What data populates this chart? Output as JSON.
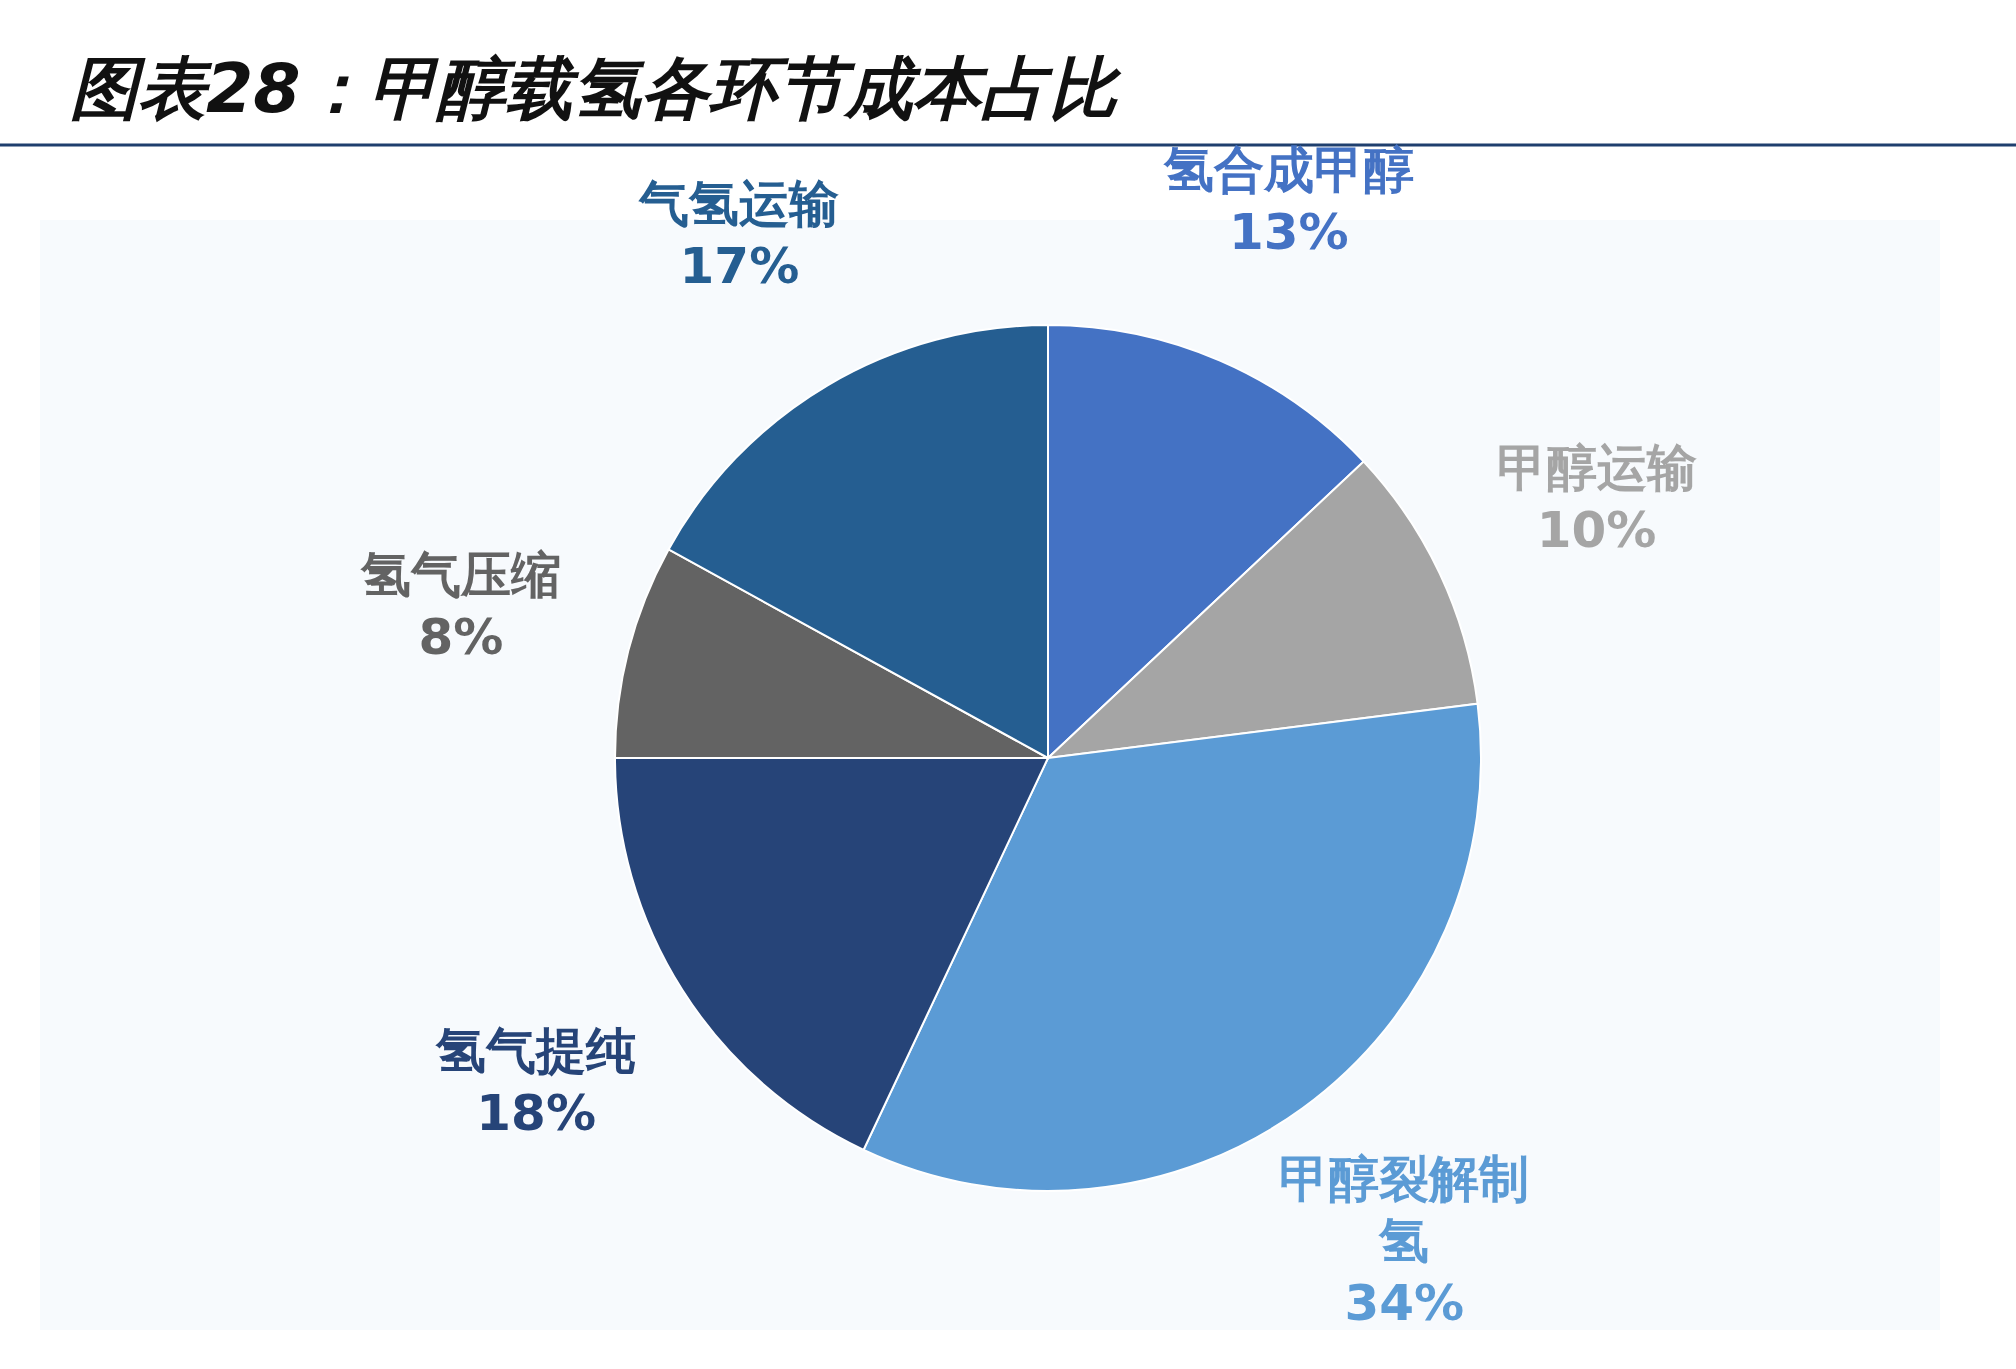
{
  "chart_data": {
    "type": "pie",
    "title": "图表28：甲醇载氢各环节成本占比",
    "categories": [
      "氢合成甲醇",
      "甲醇运输",
      "甲醇裂解制氢",
      "氢气提纯",
      "氢气压缩",
      "气氢运输"
    ],
    "values": [
      13,
      10,
      34,
      18,
      8,
      17
    ],
    "colors": [
      "#4472c4",
      "#a5a5a5",
      "#5b9bd5",
      "#264478",
      "#636363",
      "#255e91"
    ],
    "value_labels": [
      "13%",
      "10%",
      "34%",
      "18%",
      "8%",
      "17%"
    ]
  }
}
